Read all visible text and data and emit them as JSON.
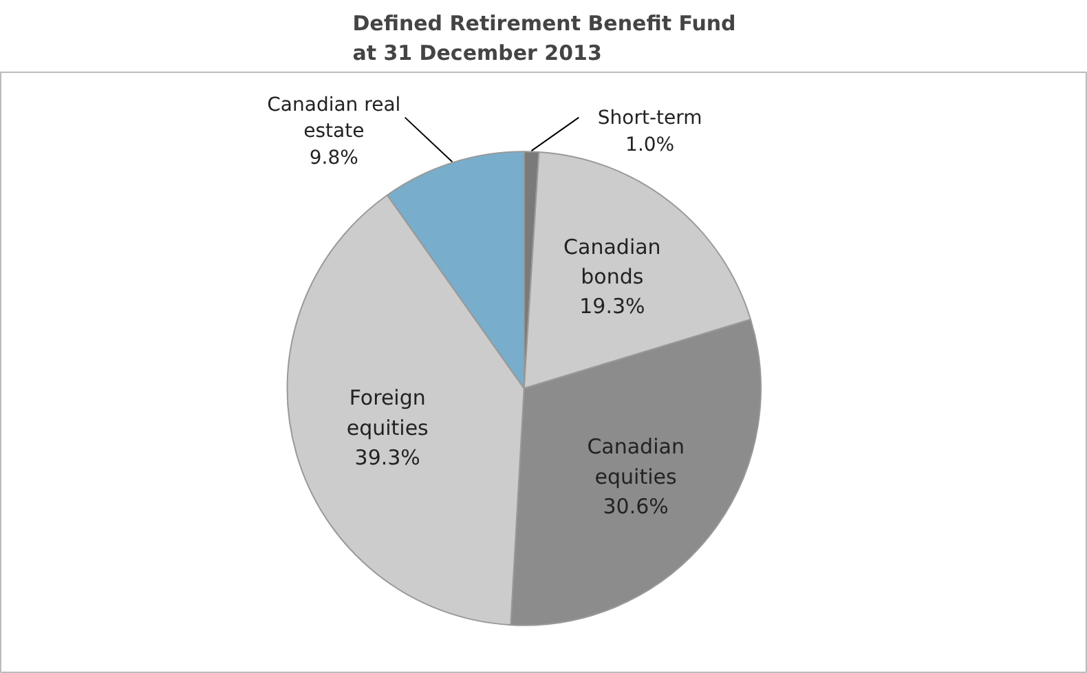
{
  "chart_data": {
    "type": "pie",
    "title": "Defined Retirement Benefit Fund\nat 31 December 2013",
    "categories": [
      "Short-term",
      "Canadian bonds",
      "Canadian equities",
      "Foreign equities",
      "Canadian real estate"
    ],
    "values": [
      1.0,
      19.3,
      30.6,
      39.3,
      9.8
    ],
    "colors": [
      "#7a7a7a",
      "#cccccc",
      "#8c8c8c",
      "#cccccc",
      "#78aecb"
    ],
    "value_labels": [
      "1.0%",
      "19.3%",
      "30.6%",
      "39.3%",
      "9.8%"
    ],
    "legend": false
  }
}
